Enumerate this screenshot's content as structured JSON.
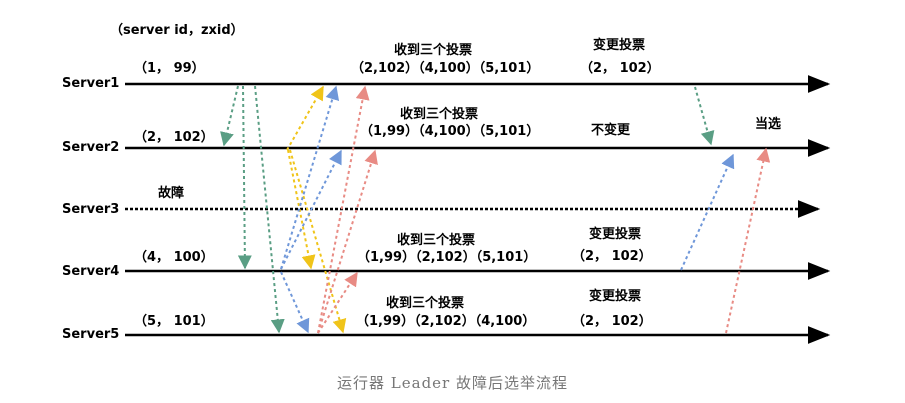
{
  "header_label": "（server id，zxid）",
  "caption": "运行器 Leader 故障后选举流程",
  "servers": [
    {
      "name": "Server1",
      "initial_vote": "（1， 99）",
      "received_title": "收到三个投票",
      "received_votes": "（2,102）（4,100）（5,101）",
      "decision": "变更投票",
      "new_vote": "（2， 102）"
    },
    {
      "name": "Server2",
      "initial_vote": "（2， 102）",
      "received_title": "收到三个投票",
      "received_votes": "（1,99）（4,100）（5,101）",
      "decision": "不变更",
      "result": "当选"
    },
    {
      "name": "Server3",
      "status": "故障"
    },
    {
      "name": "Server4",
      "initial_vote": "（4， 100）",
      "received_title": "收到三个投票",
      "received_votes": "（1,99）（2,102）（5,101）",
      "decision": "变更投票",
      "new_vote": "（2， 102）"
    },
    {
      "name": "Server5",
      "initial_vote": "（5， 101）",
      "received_title": "收到三个投票",
      "received_votes": "（1,99）（2,102）（4,100）",
      "decision": "变更投票",
      "new_vote": "（2， 102）"
    }
  ],
  "colors": {
    "timeline": "#000000",
    "server1_vote": "#5a9e84",
    "server2_vote": "#f0c419",
    "server4_vote": "#6f97d9",
    "server5_vote": "#e88b84"
  }
}
